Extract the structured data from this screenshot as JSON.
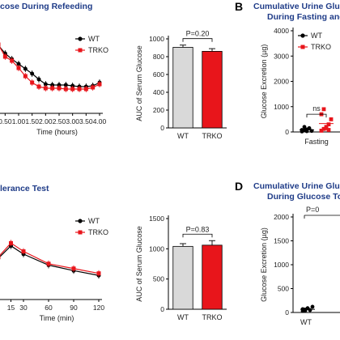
{
  "titles": {
    "a_partial": "cose During Refeeding",
    "b_letter": "B",
    "b_line1": "Cumulative Urine Gluc",
    "b_line2": "During Fasting and",
    "c_partial": "lerance Test",
    "d_letter": "D",
    "d_line1": "Cumulative Urine Gluc",
    "d_line2": "During Glucose Tol"
  },
  "colors": {
    "wt": "#000000",
    "trko": "#e8151b",
    "wt_bar": "#d9d9d9",
    "title": "#1f3c88"
  },
  "chart_data": [
    {
      "id": "refeeding-time-course",
      "type": "line",
      "xlabel": "Time (hours)",
      "ylabel": "",
      "x": [
        0.25,
        0.5,
        0.75,
        1.0,
        1.25,
        1.5,
        1.75,
        2.0,
        2.25,
        2.5,
        2.75,
        3.0,
        3.25,
        3.5,
        3.75,
        4.0
      ],
      "xticks": [
        "0.50",
        "1.00",
        "1.50",
        "2.00",
        "2.50",
        "3.00",
        "3.50",
        "4.00"
      ],
      "xtick_values": [
        0.5,
        1.0,
        1.5,
        2.0,
        2.5,
        3.0,
        3.5,
        4.0
      ],
      "ylim": [
        0,
        100
      ],
      "series": [
        {
          "name": "WT",
          "values": [
            84,
            74,
            67,
            61,
            55,
            49,
            42,
            36,
            35,
            35,
            35,
            34,
            33,
            33,
            34,
            38
          ]
        },
        {
          "name": "TRKO",
          "values": [
            85,
            70,
            65,
            56,
            46,
            38,
            33,
            31,
            31,
            31,
            30,
            30,
            30,
            30,
            32,
            36
          ]
        }
      ],
      "legend": "top-right"
    },
    {
      "id": "refeeding-auc",
      "type": "bar",
      "categories": [
        "WT",
        "TRKO"
      ],
      "values": [
        905,
        860
      ],
      "errors": [
        25,
        30
      ],
      "ylabel": "AUC of Serum Glucose",
      "ylim": [
        0,
        1000
      ],
      "yticks": [
        0,
        200,
        400,
        600,
        800,
        1000
      ],
      "annotation": "P=0.20"
    },
    {
      "id": "urine-fasting-refeeding",
      "type": "scatter",
      "ylabel": "Glucose Excretion (µg)",
      "ylim": [
        0,
        4000
      ],
      "yticks": [
        0,
        1000,
        2000,
        3000,
        4000
      ],
      "categories": [
        "Fasting"
      ],
      "series": [
        {
          "name": "WT",
          "values": [
            20,
            60,
            100,
            150,
            40,
            80,
            200,
            30
          ]
        },
        {
          "name": "TRKO",
          "values": [
            50,
            120,
            200,
            300,
            500,
            700,
            900,
            150,
            80
          ]
        }
      ],
      "annotation": "ns",
      "legend": "top-right"
    },
    {
      "id": "gtt-time-course",
      "type": "line",
      "xlabel": "Time (min)",
      "x": [
        0,
        15,
        30,
        60,
        90,
        120
      ],
      "xticks": [
        "15",
        "30",
        "60",
        "90",
        "120"
      ],
      "xtick_values": [
        15,
        30,
        60,
        90,
        120
      ],
      "ylim": [
        0,
        100
      ],
      "series": [
        {
          "name": "WT",
          "values": [
            60,
            78,
            66,
            50,
            42,
            35
          ]
        },
        {
          "name": "TRKO",
          "values": [
            62,
            82,
            70,
            52,
            45,
            38
          ]
        }
      ],
      "legend": "top-right"
    },
    {
      "id": "gtt-auc",
      "type": "bar",
      "categories": [
        "WT",
        "TRKO"
      ],
      "values": [
        1040,
        1060
      ],
      "errors": [
        45,
        75
      ],
      "ylabel": "AUC of Serum Glucose",
      "ylim": [
        0,
        1500
      ],
      "yticks": [
        0,
        500,
        1000,
        1500
      ],
      "annotation": "P=0.83"
    },
    {
      "id": "urine-gtt",
      "type": "scatter",
      "ylabel": "Glucose Excretion (µg)",
      "ylim": [
        0,
        2000
      ],
      "yticks": [
        0,
        500,
        1000,
        1500,
        2000
      ],
      "categories": [
        "WT"
      ],
      "series": [
        {
          "name": "WT",
          "values": [
            30,
            60,
            90,
            50,
            120,
            70,
            40
          ]
        }
      ],
      "annotation": "P=0"
    }
  ]
}
